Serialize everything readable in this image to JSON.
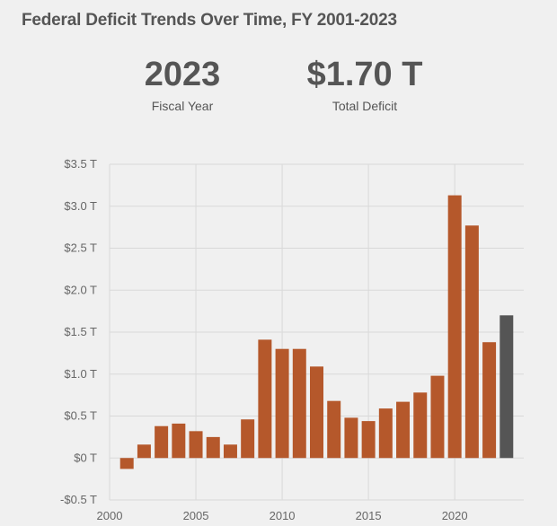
{
  "title": "Federal Deficit Trends Over Time, FY 2001-2023",
  "kpis": {
    "year": {
      "value": "2023",
      "label": "Fiscal Year"
    },
    "deficit": {
      "value": "$1.70 T",
      "label": "Total Deficit"
    }
  },
  "colors": {
    "bar": "#b5582b",
    "highlight": "#555555",
    "grid": "#d9d9d9",
    "background": "#f0f0f0"
  },
  "chart_data": {
    "type": "bar",
    "title": "Federal Deficit Trends Over Time, FY 2001-2023",
    "xlabel": "",
    "ylabel": "",
    "x": [
      2001,
      2002,
      2003,
      2004,
      2005,
      2006,
      2007,
      2008,
      2009,
      2010,
      2011,
      2012,
      2013,
      2014,
      2015,
      2016,
      2017,
      2018,
      2019,
      2020,
      2021,
      2022,
      2023
    ],
    "values": [
      -0.13,
      0.16,
      0.38,
      0.41,
      0.32,
      0.25,
      0.16,
      0.46,
      1.41,
      1.3,
      1.3,
      1.09,
      0.68,
      0.48,
      0.44,
      0.59,
      0.67,
      0.78,
      0.98,
      3.13,
      2.77,
      1.38,
      1.7
    ],
    "highlight_x": 2023,
    "xlim": [
      2000,
      2024
    ],
    "ylim": [
      -0.5,
      3.5
    ],
    "xticks": [
      2000,
      2005,
      2010,
      2015,
      2020
    ],
    "xtick_labels": [
      "2000",
      "2005",
      "2010",
      "2015",
      "2020"
    ],
    "yticks": [
      -0.5,
      0,
      0.5,
      1.0,
      1.5,
      2.0,
      2.5,
      3.0,
      3.5
    ],
    "ytick_labels": [
      "-$0.5 T",
      "$0 T",
      "$0.5 T",
      "$1.0 T",
      "$1.5 T",
      "$2.0 T",
      "$2.5 T",
      "$3.0 T",
      "$3.5 T"
    ],
    "grid": true,
    "legend": "none"
  }
}
